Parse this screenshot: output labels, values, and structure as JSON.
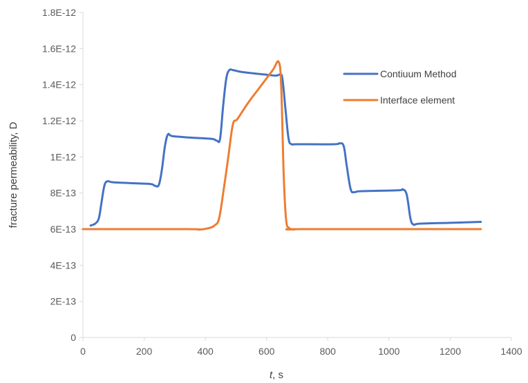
{
  "chart_data": {
    "type": "line",
    "title": "",
    "xlabel_italic": "t",
    "xlabel_rest": ", s",
    "ylabel": "fracture permeability, D",
    "xlim": [
      0,
      1400
    ],
    "ylim": [
      0,
      1.8e-12
    ],
    "x_ticks": [
      {
        "value": 0,
        "label": "0"
      },
      {
        "value": 200,
        "label": "200"
      },
      {
        "value": 400,
        "label": "400"
      },
      {
        "value": 600,
        "label": "600"
      },
      {
        "value": 800,
        "label": "800"
      },
      {
        "value": 1000,
        "label": "1000"
      },
      {
        "value": 1200,
        "label": "1200"
      },
      {
        "value": 1400,
        "label": "1400"
      }
    ],
    "y_ticks": [
      {
        "value": 0,
        "label": "0"
      },
      {
        "value": 2e-13,
        "label": "2E-13"
      },
      {
        "value": 4e-13,
        "label": "4E-13"
      },
      {
        "value": 6e-13,
        "label": "6E-13"
      },
      {
        "value": 8e-13,
        "label": "8E-13"
      },
      {
        "value": 1e-12,
        "label": "1E-12"
      },
      {
        "value": 1.2e-12,
        "label": "1.2E-12"
      },
      {
        "value": 1.4e-12,
        "label": "1.4E-12"
      },
      {
        "value": 1.6e-12,
        "label": "1.6E-12"
      },
      {
        "value": 1.8e-12,
        "label": "1.8E-12"
      }
    ],
    "grid": false,
    "legend_position": "top-right",
    "series": [
      {
        "name": "Contiuum Method",
        "color": "#4472C4",
        "points": [
          [
            25,
            6.2e-13
          ],
          [
            40,
            6.3e-13
          ],
          [
            52,
            6.6e-13
          ],
          [
            60,
            7.4e-13
          ],
          [
            70,
            8.4e-13
          ],
          [
            80,
            8.65e-13
          ],
          [
            95,
            8.6e-13
          ],
          [
            150,
            8.55e-13
          ],
          [
            220,
            8.5e-13
          ],
          [
            235,
            8.4e-13
          ],
          [
            248,
            8.45e-13
          ],
          [
            258,
            9.3e-13
          ],
          [
            268,
            1.06e-12
          ],
          [
            278,
            1.125e-12
          ],
          [
            292,
            1.115e-12
          ],
          [
            350,
            1.107e-12
          ],
          [
            420,
            1.1e-12
          ],
          [
            437,
            1.09e-12
          ],
          [
            448,
            1.1e-12
          ],
          [
            458,
            1.28e-12
          ],
          [
            468,
            1.43e-12
          ],
          [
            478,
            1.48e-12
          ],
          [
            492,
            1.48e-12
          ],
          [
            520,
            1.47e-12
          ],
          [
            600,
            1.455e-12
          ],
          [
            630,
            1.45e-12
          ],
          [
            645,
            1.455e-12
          ],
          [
            652,
            1.43e-12
          ],
          [
            662,
            1.26e-12
          ],
          [
            672,
            1.1e-12
          ],
          [
            682,
            1.07e-12
          ],
          [
            700,
            1.07e-12
          ],
          [
            820,
            1.07e-12
          ],
          [
            838,
            1.075e-12
          ],
          [
            852,
            1.06e-12
          ],
          [
            862,
            9.5e-13
          ],
          [
            875,
            8.2e-13
          ],
          [
            888,
            8.05e-13
          ],
          [
            910,
            8.1e-13
          ],
          [
            1030,
            8.15e-13
          ],
          [
            1045,
            8.2e-13
          ],
          [
            1058,
            7.9e-13
          ],
          [
            1070,
            6.6e-13
          ],
          [
            1080,
            6.25e-13
          ],
          [
            1100,
            6.3e-13
          ],
          [
            1200,
            6.35e-13
          ],
          [
            1300,
            6.4e-13
          ]
        ]
      },
      {
        "name": "Interface element",
        "color": "#ED7D31",
        "points": [
          [
            0,
            6e-13
          ],
          [
            340,
            6e-13
          ],
          [
            380,
            5.97e-13
          ],
          [
            410,
            6.05e-13
          ],
          [
            430,
            6.2e-13
          ],
          [
            445,
            6.6e-13
          ],
          [
            460,
            8.2e-13
          ],
          [
            475,
            1e-12
          ],
          [
            490,
            1.18e-12
          ],
          [
            505,
            1.21e-12
          ],
          [
            540,
            1.3e-12
          ],
          [
            580,
            1.39e-12
          ],
          [
            620,
            1.48e-12
          ],
          [
            640,
            1.525e-12
          ],
          [
            648,
            1.38e-12
          ],
          [
            656,
            9e-13
          ],
          [
            664,
            6.5e-13
          ],
          [
            675,
            6.05e-13
          ],
          [
            690,
            5.98e-13
          ],
          [
            720,
            6e-13
          ],
          [
            1300,
            6e-13
          ]
        ]
      }
    ]
  }
}
